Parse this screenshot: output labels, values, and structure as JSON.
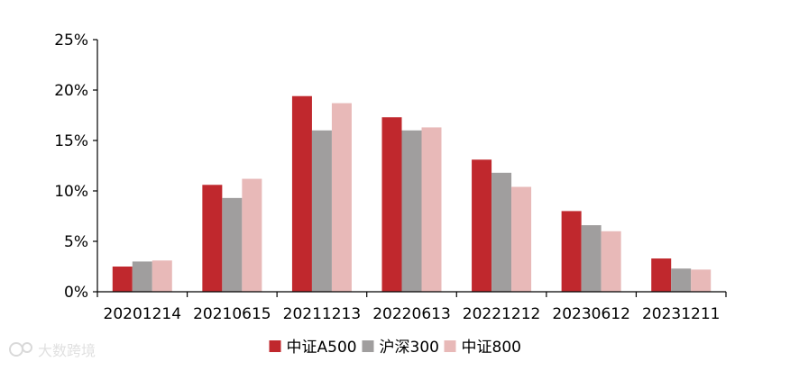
{
  "chart_data": {
    "type": "bar",
    "categories": [
      "20201214",
      "20210615",
      "20211213",
      "20220613",
      "20221212",
      "20230612",
      "20231211"
    ],
    "series": [
      {
        "name": "中证A500",
        "color": "#c0282d",
        "values": [
          2.5,
          10.6,
          19.4,
          17.3,
          13.1,
          8.0,
          3.3
        ]
      },
      {
        "name": "沪深300",
        "color": "#a09e9e",
        "values": [
          3.0,
          9.3,
          16.0,
          16.0,
          11.8,
          6.6,
          2.3
        ]
      },
      {
        "name": "中证800",
        "color": "#e8b9b8",
        "values": [
          3.1,
          11.2,
          18.7,
          16.3,
          10.4,
          6.0,
          2.2
        ]
      }
    ],
    "yticks": [
      "0%",
      "5%",
      "10%",
      "15%",
      "20%",
      "25%"
    ],
    "ylim": [
      0,
      25
    ],
    "legend_position": "bottom-center",
    "grid": false
  },
  "watermark": {
    "text": "大数跨境",
    "icon": "logo-icon"
  }
}
